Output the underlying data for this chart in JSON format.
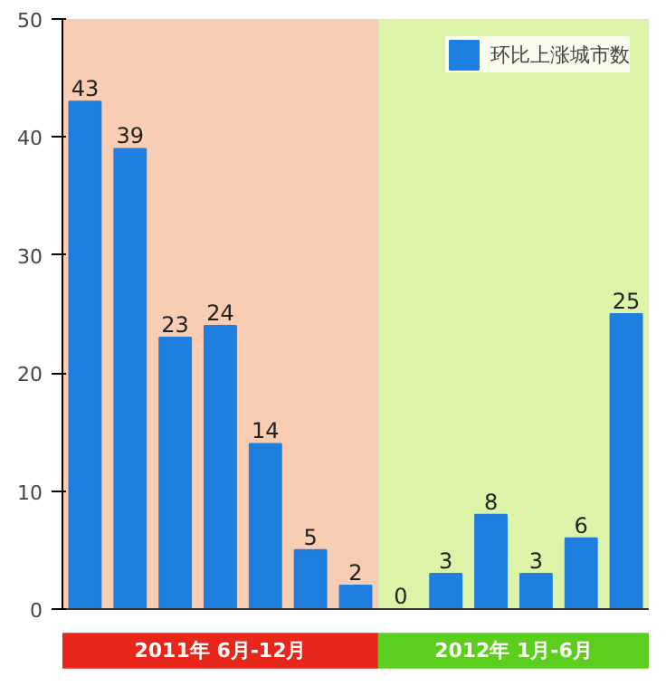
{
  "chart_data": {
    "type": "bar",
    "categories": [
      null,
      null,
      null,
      null,
      null,
      null,
      null,
      null,
      null,
      null,
      null,
      null,
      null
    ],
    "series": [
      {
        "name": "环比上涨城市数",
        "color": "#1e7fe0",
        "values": [
          43,
          39,
          23,
          24,
          14,
          5,
          2,
          0,
          3,
          8,
          3,
          6,
          25
        ]
      }
    ],
    "ylim": [
      0,
      50
    ],
    "yticks": [
      0,
      10,
      20,
      30,
      40,
      50
    ],
    "tick_labels": "y",
    "legend": "top right",
    "data_labels": true,
    "annotations": [
      "2011年 6月-12月",
      "2012年 1月-6月"
    ]
  }
}
